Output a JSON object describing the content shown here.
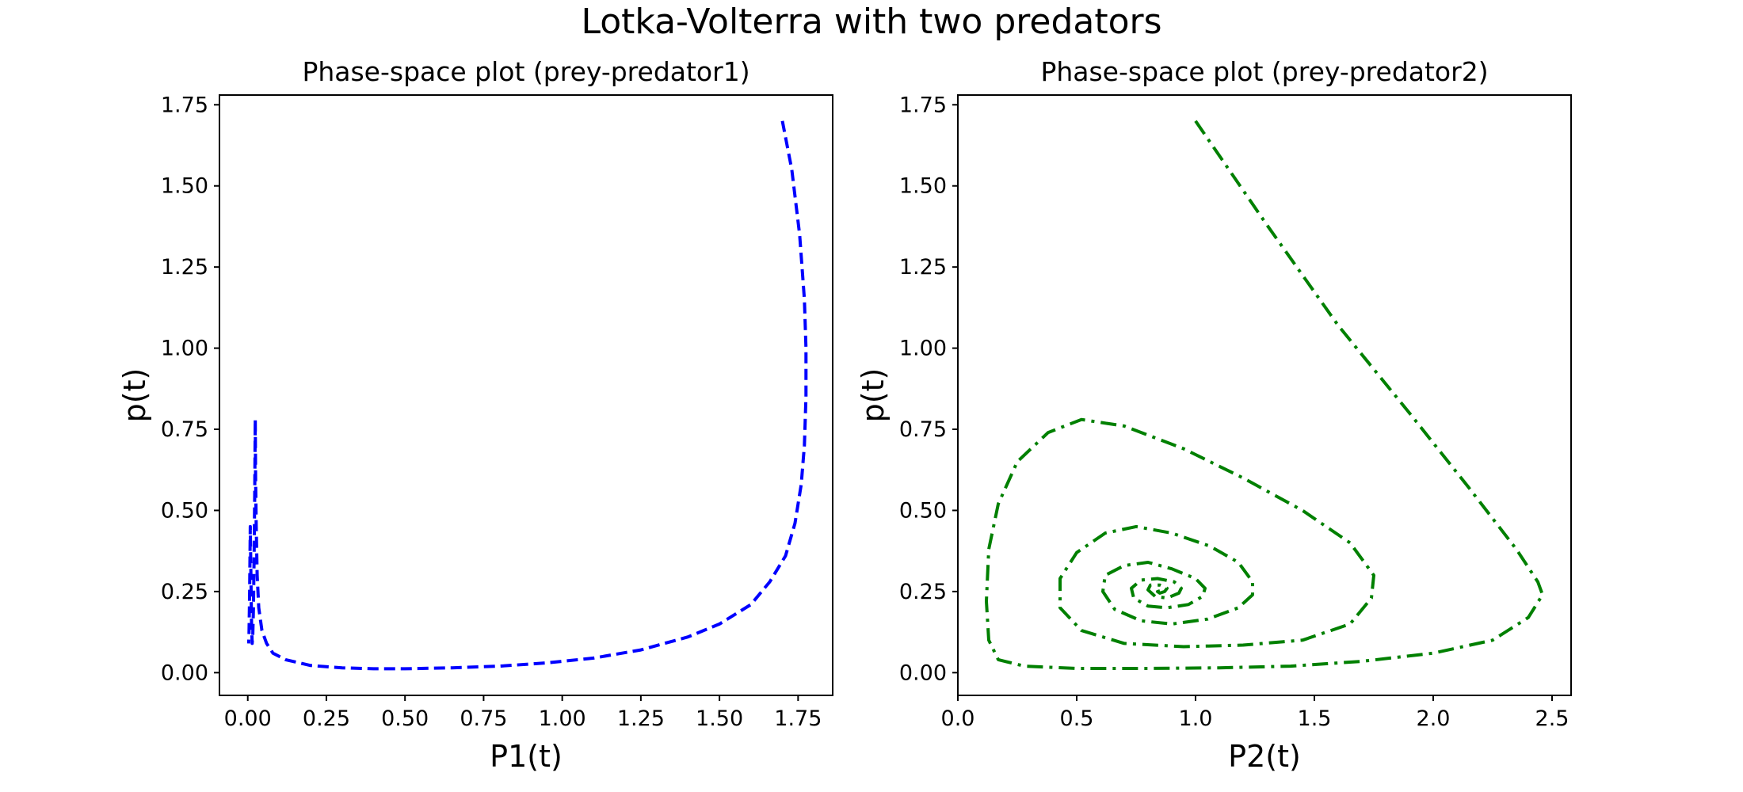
{
  "figure": {
    "suptitle": "Lotka-Volterra with two predators"
  },
  "chart_data": [
    {
      "type": "line",
      "title": "Phase-space plot (prey-predator1)",
      "xlabel": "P1(t)",
      "ylabel": "p(t)",
      "xlim": [
        -0.09,
        1.86
      ],
      "ylim": [
        -0.07,
        1.78
      ],
      "xticks": [
        "0.00",
        "0.25",
        "0.50",
        "0.75",
        "1.00",
        "1.25",
        "1.50",
        "1.75"
      ],
      "yticks": [
        "0.00",
        "0.25",
        "0.50",
        "0.75",
        "1.00",
        "1.25",
        "1.50",
        "1.75"
      ],
      "grid": false,
      "series": [
        {
          "color": "#0000ff",
          "linestyle": "dashed",
          "x": [
            1.7,
            1.73,
            1.755,
            1.77,
            1.775,
            1.775,
            1.77,
            1.76,
            1.74,
            1.71,
            1.66,
            1.6,
            1.5,
            1.4,
            1.25,
            1.1,
            0.95,
            0.8,
            0.65,
            0.5,
            0.4,
            0.3,
            0.2,
            0.12,
            0.08,
            0.06,
            0.045,
            0.035,
            0.03,
            0.027,
            0.025,
            0.024,
            0.022,
            0.02,
            0.018,
            0.016,
            0.014,
            0.012,
            0.01,
            0.008,
            0.006,
            0.004,
            0.003
          ],
          "y": [
            1.7,
            1.55,
            1.35,
            1.15,
            1.0,
            0.85,
            0.7,
            0.58,
            0.46,
            0.36,
            0.28,
            0.21,
            0.15,
            0.11,
            0.07,
            0.045,
            0.03,
            0.02,
            0.015,
            0.012,
            0.012,
            0.015,
            0.022,
            0.04,
            0.06,
            0.09,
            0.13,
            0.2,
            0.3,
            0.45,
            0.6,
            0.78,
            0.55,
            0.35,
            0.2,
            0.12,
            0.09,
            0.15,
            0.3,
            0.45,
            0.25,
            0.12,
            0.09
          ]
        }
      ]
    },
    {
      "type": "line",
      "title": "Phase-space plot (prey-predator2)",
      "xlabel": "P2(t)",
      "ylabel": "p(t)",
      "xlim": [
        0.0,
        2.58
      ],
      "ylim": [
        -0.07,
        1.78
      ],
      "xticks": [
        "0.0",
        "0.5",
        "1.0",
        "1.5",
        "2.0",
        "2.5"
      ],
      "yticks": [
        "0.00",
        "0.25",
        "0.50",
        "0.75",
        "1.00",
        "1.25",
        "1.50",
        "1.75"
      ],
      "grid": false,
      "series": [
        {
          "color": "#008000",
          "linestyle": "dashdot",
          "x": [
            1.0,
            1.3,
            1.6,
            1.9,
            2.15,
            2.35,
            2.44,
            2.46,
            2.4,
            2.25,
            2.0,
            1.7,
            1.4,
            1.1,
            0.8,
            0.5,
            0.28,
            0.17,
            0.13,
            0.12,
            0.13,
            0.17,
            0.25,
            0.38,
            0.52,
            0.7,
            0.95,
            1.2,
            1.45,
            1.65,
            1.75,
            1.74,
            1.65,
            1.45,
            1.2,
            0.95,
            0.7,
            0.52,
            0.43,
            0.43,
            0.5,
            0.62,
            0.75,
            0.9,
            1.06,
            1.18,
            1.24,
            1.24,
            1.18,
            1.05,
            0.9,
            0.77,
            0.66,
            0.61,
            0.62,
            0.7,
            0.8,
            0.9,
            1.0,
            1.04,
            1.03,
            0.97,
            0.88,
            0.8,
            0.74,
            0.73,
            0.77,
            0.84,
            0.91,
            0.94,
            0.93,
            0.88,
            0.83,
            0.8,
            0.81,
            0.85,
            0.88,
            0.87,
            0.85,
            0.84,
            0.85
          ],
          "y": [
            1.7,
            1.38,
            1.07,
            0.8,
            0.57,
            0.38,
            0.28,
            0.24,
            0.17,
            0.1,
            0.06,
            0.035,
            0.02,
            0.015,
            0.013,
            0.013,
            0.02,
            0.04,
            0.1,
            0.22,
            0.38,
            0.52,
            0.65,
            0.74,
            0.78,
            0.76,
            0.69,
            0.6,
            0.5,
            0.4,
            0.3,
            0.23,
            0.15,
            0.1,
            0.085,
            0.08,
            0.09,
            0.13,
            0.2,
            0.29,
            0.37,
            0.43,
            0.45,
            0.43,
            0.39,
            0.34,
            0.28,
            0.24,
            0.2,
            0.165,
            0.15,
            0.16,
            0.195,
            0.25,
            0.3,
            0.33,
            0.34,
            0.32,
            0.29,
            0.26,
            0.235,
            0.21,
            0.2,
            0.205,
            0.23,
            0.26,
            0.285,
            0.29,
            0.28,
            0.26,
            0.245,
            0.23,
            0.235,
            0.255,
            0.27,
            0.27,
            0.26,
            0.25,
            0.245,
            0.25,
            0.252
          ]
        }
      ]
    }
  ]
}
